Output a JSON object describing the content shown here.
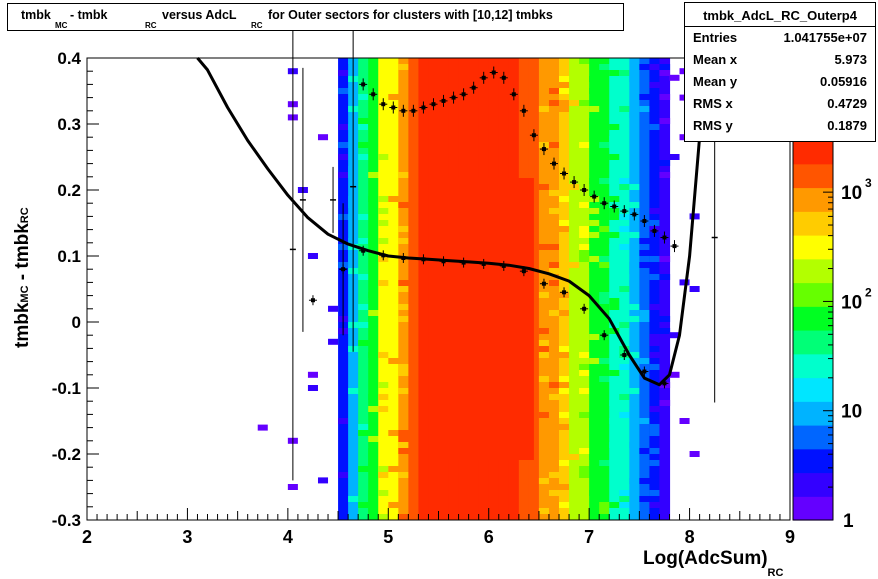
{
  "title": {
    "p1": "tmbk",
    "s1": "MC",
    "p2": "- tmbk",
    "s2": "RC",
    "p3": "versus AdcL",
    "s3": "RC",
    "p4": "for Outer sectors for clusters with [10,12] tmbks"
  },
  "stats": {
    "name": "tmbk_AdcL_RC_Outerp4",
    "rows": [
      {
        "label": "Entries",
        "value": "1.041755e+07"
      },
      {
        "label": "Mean x",
        "value": "5.973"
      },
      {
        "label": "Mean y",
        "value": "0.05916"
      },
      {
        "label": "RMS x",
        "value": "0.4729"
      },
      {
        "label": "RMS y",
        "value": "0.1879"
      }
    ]
  },
  "axes": {
    "ylabel_main": "tmbk",
    "ylabel_sub1": "MC",
    "ylabel_mid": "- tmbk",
    "ylabel_sub2": "RC",
    "xlabel_main": "Log(AdcSum)",
    "xlabel_sub": "RC"
  },
  "chart_data": {
    "type": "heatmap",
    "x": {
      "min": 2,
      "max": 9,
      "ticks": [
        "2",
        "3",
        "4",
        "5",
        "6",
        "7",
        "8",
        "9"
      ]
    },
    "y": {
      "min": -0.3,
      "max": 0.4,
      "ticks": [
        "-0.3",
        "-0.2",
        "-0.1",
        "0",
        "0.1",
        "0.2",
        "0.3",
        "0.4"
      ]
    },
    "z": {
      "scale": "log",
      "min": 1,
      "max": 3000,
      "ticks": [
        {
          "base": "",
          "exp": "",
          "label": "1"
        },
        {
          "base": "10",
          "exp": ""
        },
        {
          "base": "10",
          "exp": "2"
        },
        {
          "base": "10",
          "exp": "3"
        }
      ]
    },
    "palette": [
      "#6400ff",
      "#3300ff",
      "#0011ff",
      "#0066ff",
      "#00b3ff",
      "#00e6ff",
      "#00ffcc",
      "#00ff77",
      "#00ff22",
      "#66ff00",
      "#b3ff00",
      "#ffff00",
      "#ffcc00",
      "#ff9900",
      "#ff5500",
      "#ff2b00"
    ],
    "column_x": [
      4.55,
      4.65,
      4.75,
      4.85,
      4.95,
      5.05,
      5.15,
      5.25,
      5.35,
      5.45,
      5.55,
      5.65,
      5.75,
      5.85,
      5.95,
      6.05,
      6.15,
      6.25,
      6.35,
      6.45,
      6.55,
      6.65,
      6.75,
      6.85,
      6.95,
      7.05,
      7.15,
      7.25,
      7.35,
      7.45,
      7.55,
      7.65,
      7.75
    ],
    "column_levels": [
      2,
      5,
      7,
      9,
      11,
      12,
      13,
      14,
      15,
      15,
      15,
      15,
      15,
      15,
      15,
      15,
      15,
      15,
      14,
      14,
      13,
      13,
      12,
      11,
      10,
      9,
      8,
      7,
      6,
      5,
      3,
      2,
      1
    ],
    "core_x_range": [
      5.5,
      6.45
    ],
    "mean_profile": {
      "x": [
        4.75,
        4.85,
        4.95,
        5.05,
        5.15,
        5.25,
        5.35,
        5.45,
        5.55,
        5.65,
        5.75,
        5.85,
        5.95,
        6.05,
        6.15,
        6.25,
        6.35,
        6.45,
        6.55,
        6.65,
        6.75,
        6.85,
        6.95,
        7.05,
        7.15,
        7.25,
        7.35,
        7.45,
        7.55,
        7.65,
        7.75,
        7.85
      ],
      "y": [
        0.36,
        0.345,
        0.33,
        0.325,
        0.32,
        0.32,
        0.325,
        0.33,
        0.335,
        0.34,
        0.345,
        0.355,
        0.37,
        0.378,
        0.37,
        0.345,
        0.32,
        0.283,
        0.262,
        0.24,
        0.225,
        0.212,
        0.2,
        0.19,
        0.18,
        0.175,
        0.168,
        0.163,
        0.153,
        0.138,
        0.128,
        0.115
      ]
    },
    "fit_points": {
      "x": [
        4.25,
        4.55,
        4.75,
        4.95,
        5.15,
        5.35,
        5.55,
        5.75,
        5.95,
        6.15,
        6.35,
        6.55,
        6.75,
        6.95,
        7.15,
        7.35,
        7.55,
        7.75
      ],
      "y": [
        0.033,
        0.08,
        0.108,
        0.101,
        0.097,
        0.095,
        0.092,
        0.09,
        0.088,
        0.085,
        0.077,
        0.058,
        0.045,
        0.02,
        -0.02,
        -0.05,
        -0.075,
        -0.093
      ]
    },
    "fit_curve": {
      "x": [
        3.1,
        3.2,
        3.4,
        3.6,
        3.8,
        4.0,
        4.2,
        4.4,
        4.6,
        4.8,
        5.0,
        5.2,
        5.4,
        5.6,
        5.8,
        6.0,
        6.2,
        6.4,
        6.6,
        6.8,
        7.0,
        7.2,
        7.4,
        7.55,
        7.7,
        7.8,
        7.9,
        8.0,
        8.1,
        8.15
      ],
      "y": [
        0.4,
        0.382,
        0.325,
        0.275,
        0.232,
        0.192,
        0.158,
        0.133,
        0.118,
        0.108,
        0.1,
        0.097,
        0.095,
        0.093,
        0.091,
        0.089,
        0.086,
        0.081,
        0.073,
        0.062,
        0.04,
        0.005,
        -0.05,
        -0.085,
        -0.095,
        -0.08,
        -0.02,
        0.1,
        0.28,
        0.4
      ]
    },
    "extras": [
      {
        "x": 4.05,
        "y": 0.11,
        "err": 0.35
      },
      {
        "x": 4.15,
        "y": 0.185,
        "err": 0.2
      },
      {
        "x": 4.45,
        "y": 0.185,
        "err": 0.05
      },
      {
        "x": 4.65,
        "y": 0.205,
        "err": 0.25
      },
      {
        "x": 4.55,
        "y": 0.08,
        "err": 0.1
      },
      {
        "x": 8.25,
        "y": 0.128,
        "err": 0.25
      }
    ]
  }
}
